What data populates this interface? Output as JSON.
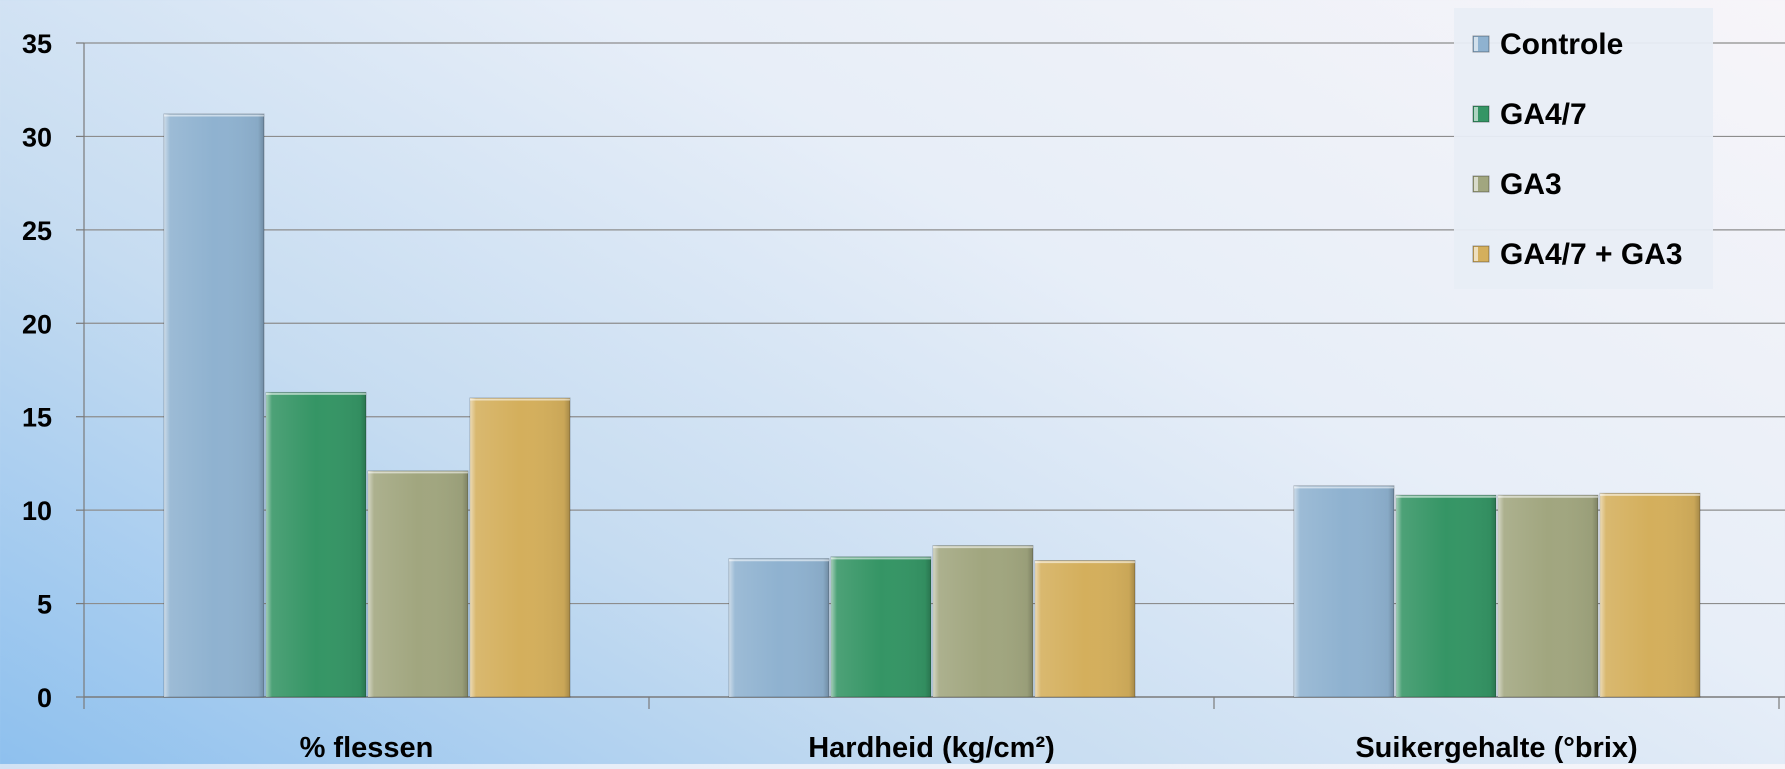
{
  "chart_data": {
    "type": "bar",
    "categories": [
      "% flessen",
      "Hardheid (kg/cm²)",
      "Suikergehalte (°brix)"
    ],
    "series": [
      {
        "name": "Controle",
        "values": [
          31.2,
          7.4,
          11.3
        ],
        "color": "#8fb2d0"
      },
      {
        "name": "GA4/7",
        "values": [
          16.3,
          7.5,
          10.8
        ],
        "color": "#359565"
      },
      {
        "name": "GA3",
        "values": [
          12.1,
          8.1,
          10.8
        ],
        "color": "#a1a67f"
      },
      {
        "name": "GA4/7 + GA3",
        "values": [
          16.0,
          7.3,
          10.9
        ],
        "color": "#d4af5c"
      }
    ],
    "ylim": [
      0,
      35
    ],
    "yticks": [
      0,
      5,
      10,
      15,
      20,
      25,
      30,
      35
    ],
    "grid": true,
    "legend_position": "top-right",
    "title": "",
    "xlabel": "",
    "ylabel": ""
  }
}
